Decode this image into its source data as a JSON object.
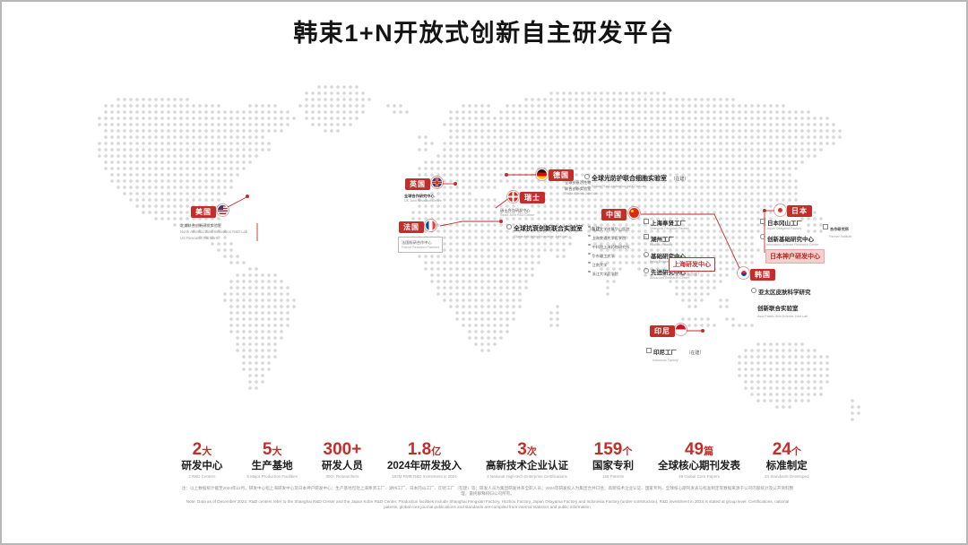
{
  "title": "韩束1+N开放式创新自主研发平台",
  "colors": {
    "accent": "#c22e2a",
    "map_dot": "#d7d7d7"
  },
  "markers": {
    "usa": {
      "label": "美国",
      "lines": [
        "北美联合创新研发实验室",
        "North America Joint Innovation R&D Lab",
        "US Research Partners"
      ]
    },
    "uk": {
      "label": "英国",
      "line": "全球合作研究中心",
      "en": "UK Joint Research Centre"
    },
    "germany": {
      "label": "德国",
      "line": "全球光防护联合细胞实验室",
      "paren": "（在建）",
      "en": "Global Photo-protection Joint Cell Lab"
    },
    "switzerland": {
      "label": "瑞士",
      "right_lines": [
        "全球抗衰活性物",
        "联合创新实验室",
        "Swiss Actives Joint Lab"
      ],
      "below_lines": [
        "瑞士合作研发中心",
        "Swiss Joint R&D Center"
      ]
    },
    "france": {
      "label": "法国",
      "line": "全球抗衰创新联合实验室",
      "paren": "（在建）",
      "en": "Global Anti-aging Innovation Joint Lab",
      "box_lines": [
        "法国科研合作中心",
        "France Research Partners"
      ]
    },
    "china": {
      "label": "中国",
      "partners": [
        "复旦大学附属华山医院",
        "上海交通大学医学院",
        "中科院上海药物研究所",
        "华东理工大学",
        "江南大学",
        "浙江大学药学院"
      ],
      "facilities": [
        {
          "text": "上海奉贤工厂",
          "en": "Shanghai Fengxian Factory"
        },
        {
          "text": "湖州工厂",
          "en": "Huzhou Factory"
        },
        {
          "text": "基础研究中心",
          "en": "Basic Research Center"
        },
        {
          "text": "先进研究中心",
          "en": "Advanced Research Center"
        }
      ],
      "shanghai_box": "上海研发中心",
      "shanghai_sub": "（全球研发总部）"
    },
    "japan": {
      "label": "日本",
      "items": [
        {
          "text": "日本冈山工厂",
          "en": "Japan Okayama Factory"
        },
        {
          "text": "创新基础研究中心",
          "en": "Innovation Science Research Center"
        },
        {
          "text": "功效化妆品研究中心",
          "en": "Efficacy Cosmetics Research Center"
        }
      ],
      "side_item": {
        "text": "合作研究所",
        "en": "Partner Institute"
      },
      "kobe_box": "日本神户研发中心"
    },
    "korea": {
      "label": "韩国",
      "lines": [
        "亚太区皮肤科学研究",
        "创新联合实验室"
      ],
      "en": "Asia-Pacific Skin Science Joint Lab"
    },
    "indonesia": {
      "label": "印尼",
      "line": "印尼工厂",
      "paren": "（在建）",
      "en": "Indonesia Factory"
    }
  },
  "stats": [
    {
      "value": "2",
      "suffix": "大",
      "label": "研发中心",
      "en": "2 R&D Centers"
    },
    {
      "value": "5",
      "suffix": "大",
      "label": "生产基地",
      "en": "5 Major Production Facilities"
    },
    {
      "value": "300+",
      "suffix": "",
      "label": "研发人员",
      "en": "300+ Researchers"
    },
    {
      "value": "1.8",
      "suffix": "亿",
      "label": "2024年研发投入",
      "en": "182M RMB R&D Investment in 2024"
    },
    {
      "value": "3",
      "suffix": "次",
      "label": "高新技术企业认证",
      "en": "3 National High-tech Enterprise Certifications"
    },
    {
      "value": "159",
      "suffix": "个",
      "label": "国家专利",
      "en": "159 Patents"
    },
    {
      "value": "49",
      "suffix": "篇",
      "label": "全球核心期刊发表",
      "en": "49 Global Core Papers"
    },
    {
      "value": "24",
      "suffix": "个",
      "label": "标准制定",
      "en": "24 Standards Developed"
    }
  ],
  "footnotes": [
    "注：以上数据统计截至2024年12月。研发中心指上海研发中心及日本神户研发中心；生产基地包括上海奉贤工厂、湖州工厂、日本冈山工厂、印尼工厂（在建）等；研发人员为集团研发体系全职人员；2024年研发投入为集团合并口径；高新技术企业认证、国家专利、全球核心期刊发表与标准制定等数据来源于公司内部统计及公开资料整理，最终解释权归公司所有。",
    "Note: Data as of December 2024. R&D centers refer to the Shanghai R&D Center and the Japan Kobe R&D Center. Production facilities include Shanghai Fengxian Factory, Huzhou Factory, Japan Okayama Factory and Indonesia Factory (under construction). R&D investment in 2024 is stated at group level. Certifications, national patents, global core journal publications and standards are compiled from internal statistics and public information."
  ]
}
